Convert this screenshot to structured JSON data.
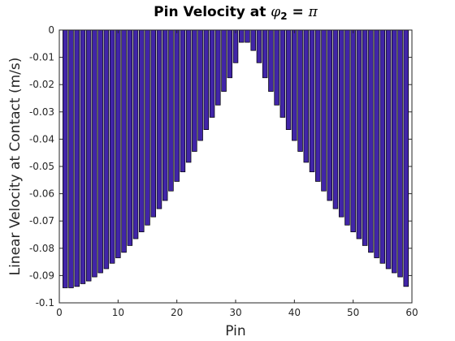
{
  "chart_data": {
    "type": "bar",
    "title": {
      "prefix": "Pin Velocity at ",
      "symbol": "φ",
      "subscript": "2",
      "suffix": " = ",
      "value_symbol": "π"
    },
    "xlabel": "Pin",
    "ylabel": "Linear Velocity at Contact (m/s)",
    "xlim": [
      0,
      60
    ],
    "ylim": [
      -0.1,
      0
    ],
    "xticks": [
      0,
      10,
      20,
      30,
      40,
      50,
      60
    ],
    "yticks": [
      0,
      -0.01,
      -0.02,
      -0.03,
      -0.04,
      -0.05,
      -0.06,
      -0.07,
      -0.08,
      -0.09,
      -0.1
    ],
    "ytick_labels": [
      "0",
      "-0.01",
      "-0.02",
      "-0.03",
      "-0.04",
      "-0.05",
      "-0.06",
      "-0.07",
      "-0.08",
      "-0.09",
      "-0.1"
    ],
    "grid": false,
    "bar_color": "#4125a8",
    "x": [
      1,
      2,
      3,
      4,
      5,
      6,
      7,
      8,
      9,
      10,
      11,
      12,
      13,
      14,
      15,
      16,
      17,
      18,
      19,
      20,
      21,
      22,
      23,
      24,
      25,
      26,
      27,
      28,
      29,
      30,
      31,
      32,
      33,
      34,
      35,
      36,
      37,
      38,
      39,
      40,
      41,
      42,
      43,
      44,
      45,
      46,
      47,
      48,
      49,
      50,
      51,
      52,
      53,
      54,
      55,
      56,
      57,
      58,
      59
    ],
    "values": [
      -0.0945,
      -0.0945,
      -0.094,
      -0.093,
      -0.092,
      -0.0905,
      -0.089,
      -0.0875,
      -0.0855,
      -0.0835,
      -0.0815,
      -0.079,
      -0.0765,
      -0.074,
      -0.0715,
      -0.0685,
      -0.0655,
      -0.0625,
      -0.059,
      -0.0555,
      -0.052,
      -0.0485,
      -0.0445,
      -0.0405,
      -0.0365,
      -0.032,
      -0.0275,
      -0.0225,
      -0.0175,
      -0.012,
      -0.0045,
      -0.0045,
      -0.0075,
      -0.012,
      -0.0175,
      -0.0225,
      -0.0275,
      -0.032,
      -0.0365,
      -0.0405,
      -0.0445,
      -0.0485,
      -0.052,
      -0.0555,
      -0.059,
      -0.0625,
      -0.0655,
      -0.0685,
      -0.0715,
      -0.074,
      -0.0765,
      -0.079,
      -0.0815,
      -0.0835,
      -0.0855,
      -0.0875,
      -0.089,
      -0.0905,
      -0.094
    ]
  }
}
